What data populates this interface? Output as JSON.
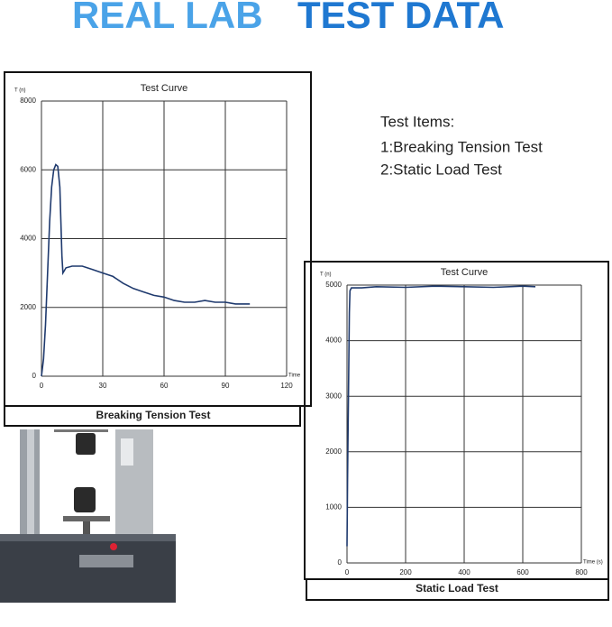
{
  "header": {
    "title_parts": [
      "REAL LAB",
      "TEST DATA"
    ]
  },
  "test_items": {
    "title": "Test Items:",
    "items": [
      "1:Breaking Tension Test",
      "2:Static Load Test"
    ]
  },
  "chart_data": [
    {
      "type": "line",
      "title": "Test Curve",
      "caption": "Breaking Tension Test",
      "xlabel": "Time",
      "ylabel": "T (n)",
      "x": [
        0,
        1,
        2,
        3,
        4,
        5,
        6,
        7,
        8,
        9,
        10,
        10.5,
        12,
        15,
        20,
        25,
        30,
        35,
        40,
        45,
        50,
        55,
        60,
        65,
        70,
        75,
        80,
        85,
        90,
        95,
        100,
        102
      ],
      "values": [
        0,
        500,
        1500,
        3000,
        4500,
        5500,
        6000,
        6150,
        6100,
        5500,
        3500,
        3000,
        3150,
        3200,
        3200,
        3100,
        3000,
        2900,
        2700,
        2550,
        2450,
        2350,
        2300,
        2200,
        2150,
        2150,
        2200,
        2150,
        2150,
        2100,
        2100,
        2100
      ],
      "color": "#1f3a6e",
      "xlim": [
        0,
        120
      ],
      "xticks": [
        0,
        30,
        60,
        90,
        120
      ],
      "ylim": [
        0,
        8000
      ],
      "yticks": [
        0,
        2000,
        4000,
        6000,
        8000
      ],
      "grid": true
    },
    {
      "type": "line",
      "title": "Test Curve",
      "caption": "Static Load Test",
      "xlabel": "Time (s)",
      "ylabel": "T (n)",
      "x": [
        0,
        2,
        5,
        8,
        10,
        15,
        50,
        100,
        200,
        300,
        400,
        500,
        600,
        643
      ],
      "values": [
        300,
        1500,
        3000,
        4500,
        4900,
        4950,
        4950,
        4970,
        4960,
        4980,
        4970,
        4960,
        4980,
        4970
      ],
      "color": "#1f3a6e",
      "xlim": [
        0,
        800
      ],
      "xticks": [
        0,
        200,
        400,
        600,
        800
      ],
      "ylim": [
        0,
        5000
      ],
      "yticks": [
        0,
        1000,
        2000,
        3000,
        4000,
        5000
      ],
      "grid": true
    }
  ]
}
